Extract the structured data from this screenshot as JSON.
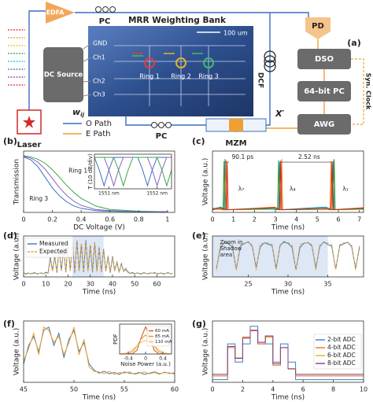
{
  "diagram": {
    "panel_label": "(a)",
    "edfa": "EDFA",
    "pc_top": "PC",
    "chip_title": "MRR Weighting Bank",
    "scale_bar": "100 um",
    "pads": [
      "GND",
      "Ch1",
      "Ch2",
      "Ch3"
    ],
    "dc_source": "DC Source",
    "weight": "w",
    "weight_sub": "ij",
    "rings": [
      "Ring 1",
      "Ring 2",
      "Ring 3"
    ],
    "dcf": "DCF",
    "pd": "PD",
    "dso": "DSO",
    "computer": "64-bit PC",
    "clock": "Syn. Clock",
    "awg": "AWG",
    "mzm": "MZM",
    "x_prime": "X′",
    "pc_bottom": "PC",
    "laser": "Laser",
    "legend": [
      "O Path",
      "E Path"
    ]
  },
  "chart_data": [
    {
      "type": "line",
      "panel_label": "(b)",
      "xlabel": "DC Voltage (V)",
      "ylabel": "Transmission",
      "xlim": [
        0,
        1.05
      ],
      "xticks": [
        0,
        0.2,
        0.4,
        0.6,
        0.8,
        1
      ],
      "ylim": [
        0,
        1.05
      ],
      "x": [
        0,
        0.05,
        0.1,
        0.15,
        0.2,
        0.25,
        0.3,
        0.35,
        0.4,
        0.5,
        0.6,
        0.8,
        1
      ],
      "series": [
        {
          "color": "#3aa64a",
          "values": [
            0.97,
            0.95,
            0.91,
            0.84,
            0.73,
            0.6,
            0.46,
            0.34,
            0.24,
            0.11,
            0.05,
            0.02,
            0.01
          ]
        },
        {
          "color": "#8a5fc0",
          "values": [
            0.96,
            0.93,
            0.86,
            0.74,
            0.58,
            0.42,
            0.29,
            0.19,
            0.12,
            0.05,
            0.03,
            0.01,
            0.01
          ]
        },
        {
          "color": "#3a6fc0",
          "values": [
            0.95,
            0.9,
            0.78,
            0.6,
            0.42,
            0.28,
            0.18,
            0.11,
            0.07,
            0.03,
            0.02,
            0.01,
            0.01
          ]
        }
      ],
      "annotations": [
        "Ring 1",
        "Ring 3"
      ],
      "inset": {
        "type": "line",
        "ylabel": "T (10 dB/div)",
        "xlim": [
          1550.7,
          1552.3
        ],
        "xticks": [
          {
            "value": 1551,
            "label": "1551 nm"
          },
          {
            "value": 1552,
            "label": "1552 nm"
          }
        ],
        "ylim": [
          0,
          1.1
        ],
        "x": [
          1550.7,
          1550.8,
          1550.9,
          1551.0,
          1551.1,
          1551.2,
          1551.3,
          1551.4,
          1551.5,
          1551.6,
          1551.7,
          1551.8,
          1551.9,
          1552.0,
          1552.1,
          1552.2,
          1552.3
        ],
        "series": [
          {
            "color": "#3a6fc0",
            "values": [
              1,
              0.6,
              0.1,
              0.6,
              1,
              1,
              1,
              1,
              1,
              1,
              0.6,
              0.1,
              0.6,
              1,
              1,
              1,
              1
            ]
          },
          {
            "color": "#8a5fc0",
            "values": [
              1,
              1,
              1,
              0.6,
              0.1,
              0.6,
              1,
              1,
              1,
              1,
              1,
              1,
              0.6,
              0.1,
              0.6,
              1,
              1
            ]
          },
          {
            "color": "#3aa64a",
            "values": [
              1,
              1,
              1,
              1,
              1,
              0.6,
              0.1,
              0.6,
              1,
              1,
              1,
              1,
              1,
              1,
              0.6,
              0.1,
              0.6
            ]
          }
        ]
      }
    },
    {
      "type": "line",
      "panel_label": "(c)",
      "xlabel": "Time (ns)",
      "ylabel": "Voltage (a.u.)",
      "xlim": [
        0,
        7.2
      ],
      "xticks": [
        0,
        1,
        2,
        3,
        4,
        5,
        6,
        7
      ],
      "ylim": [
        0,
        1.15
      ],
      "series": [
        {
          "color": "#1f77b4",
          "x": [
            0,
            0.4,
            0.55,
            0.6,
            0.65,
            2.9,
            3.15,
            3.2,
            3.25,
            5.4,
            5.7,
            5.75,
            5.8,
            7.2
          ],
          "values": [
            0.06,
            0.1,
            0.05,
            1.0,
            0.05,
            0.08,
            0.05,
            0.95,
            0.05,
            0.1,
            0.05,
            0.97,
            0.05,
            0.07
          ]
        },
        {
          "color": "#ff7f0e",
          "x": [
            0,
            0.45,
            0.6,
            0.65,
            0.7,
            2.95,
            3.25,
            3.3,
            3.35,
            5.35,
            5.6,
            5.65,
            5.7,
            7.2
          ],
          "values": [
            0.08,
            0.05,
            0.05,
            0.98,
            0.05,
            0.1,
            0.05,
            1.0,
            0.05,
            0.07,
            0.05,
            0.96,
            0.05,
            0.09
          ]
        },
        {
          "color": "#2ca02c",
          "x": [
            0,
            0.35,
            0.5,
            0.55,
            0.6,
            2.85,
            3.1,
            3.15,
            3.2,
            5.45,
            5.75,
            5.8,
            5.85,
            7.2
          ],
          "values": [
            0.07,
            0.09,
            0.05,
            0.96,
            0.05,
            0.06,
            0.05,
            0.98,
            0.05,
            0.08,
            0.05,
            1.0,
            0.05,
            0.06
          ]
        },
        {
          "color": "#d62728",
          "x": [
            0,
            0.5,
            0.65,
            0.7,
            0.75,
            3.0,
            3.2,
            3.25,
            3.3,
            5.5,
            5.65,
            5.7,
            5.75,
            7.2
          ],
          "values": [
            0.05,
            0.08,
            0.05,
            0.94,
            0.05,
            0.09,
            0.05,
            0.97,
            0.05,
            0.06,
            0.05,
            0.95,
            0.05,
            0.08
          ]
        }
      ],
      "annotations": [
        "90.1 ps",
        "2.52 ns",
        "λ₇",
        "λ₄",
        "λ₁"
      ]
    },
    {
      "type": "line",
      "panel_label": "(d)",
      "xlabel": "Time (ns)",
      "ylabel": "Voltage (a.u.)",
      "xlim": [
        0,
        68
      ],
      "xticks": [
        0,
        10,
        20,
        30,
        40,
        50,
        60
      ],
      "ylim": [
        0,
        1.15
      ],
      "highlight_x": [
        22,
        36
      ],
      "legend": "upper left",
      "x": [
        0,
        1,
        2,
        3,
        4,
        5,
        6,
        7,
        8,
        9,
        10,
        11,
        12,
        13,
        14,
        15,
        16,
        17,
        18,
        19,
        20,
        21,
        22,
        23,
        24,
        25,
        26,
        27,
        28,
        29,
        30,
        31,
        32,
        33,
        34,
        35,
        36,
        37,
        38,
        39,
        40,
        41,
        42,
        43,
        44,
        45,
        46,
        47,
        48,
        49,
        50,
        51,
        52,
        53,
        54,
        55,
        56,
        57,
        58,
        59,
        60,
        61,
        62,
        63,
        64,
        65,
        66,
        67
      ],
      "series": [
        {
          "name": "Measured",
          "color": "#3a78b8",
          "values": [
            0.12,
            0.08,
            0.11,
            0.09,
            0.1,
            0.12,
            0.08,
            0.1,
            0.11,
            0.09,
            0.13,
            0.1,
            0.55,
            0.18,
            0.58,
            0.12,
            0.8,
            0.17,
            0.82,
            0.13,
            0.93,
            0.18,
            0.97,
            0.12,
            1.02,
            0.17,
            0.92,
            0.14,
            1.03,
            0.18,
            0.88,
            0.13,
            0.97,
            0.17,
            0.82,
            0.14,
            0.78,
            0.16,
            0.57,
            0.12,
            0.58,
            0.17,
            0.42,
            0.13,
            0.37,
            0.16,
            0.22,
            0.13,
            0.1,
            0.12,
            0.09,
            0.11,
            0.1,
            0.08,
            0.12,
            0.1,
            0.09,
            0.11,
            0.1,
            0.12,
            0.09,
            0.1,
            0.11,
            0.08,
            0.1,
            0.12,
            0.09,
            0.1
          ]
        },
        {
          "name": "Expected",
          "color": "#f0a030",
          "linestyle": "dashed",
          "values": [
            0.1,
            0.1,
            0.1,
            0.1,
            0.1,
            0.1,
            0.1,
            0.1,
            0.1,
            0.1,
            0.1,
            0.1,
            0.5,
            0.15,
            0.6,
            0.15,
            0.75,
            0.15,
            0.85,
            0.15,
            0.9,
            0.15,
            0.95,
            0.15,
            1.0,
            0.15,
            0.95,
            0.15,
            1.0,
            0.15,
            0.9,
            0.15,
            0.95,
            0.15,
            0.85,
            0.15,
            0.75,
            0.15,
            0.6,
            0.15,
            0.55,
            0.15,
            0.45,
            0.15,
            0.35,
            0.15,
            0.25,
            0.15,
            0.1,
            0.1,
            0.1,
            0.1,
            0.1,
            0.1,
            0.1,
            0.1,
            0.1,
            0.1,
            0.1,
            0.1,
            0.1,
            0.1,
            0.1,
            0.1,
            0.1,
            0.1,
            0.1,
            0.1
          ]
        }
      ]
    },
    {
      "type": "line",
      "panel_label": "(e)",
      "xlabel": "Time (ns)",
      "ylabel": "Voltage (a.u.)",
      "xlim": [
        20.5,
        39.5
      ],
      "xticks": [
        25,
        30,
        35
      ],
      "ylim": [
        0,
        1.2
      ],
      "highlight_x": [
        20.5,
        35
      ],
      "x": [
        21,
        21.5,
        22,
        22.5,
        23,
        23.5,
        24,
        24.5,
        25,
        25.5,
        26,
        26.5,
        27,
        27.5,
        28,
        28.5,
        29,
        29.5,
        30,
        30.5,
        31,
        31.5,
        32,
        32.5,
        33,
        33.5,
        34,
        34.5,
        35,
        35.5,
        36,
        36.5,
        37,
        37.5,
        38,
        38.5,
        39
      ],
      "series": [
        {
          "color": "#3a78b8",
          "values": [
            0.25,
            0.85,
            1.02,
            0.97,
            0.88,
            0.22,
            0.9,
            0.98,
            1.03,
            0.9,
            0.27,
            0.88,
            1.0,
            0.96,
            0.92,
            0.24,
            0.92,
            1.04,
            0.98,
            0.87,
            0.21,
            0.86,
            0.99,
            1.01,
            0.91,
            0.26,
            0.89,
            1.03,
            0.95,
            0.9,
            0.23,
            0.91,
            0.97,
            1.02,
            0.89,
            0.25,
            0.88
          ]
        },
        {
          "color": "#f0a030",
          "linestyle": "dashed",
          "values": [
            0.2,
            0.95,
            1,
            1,
            0.95,
            0.2,
            0.95,
            1,
            1,
            0.95,
            0.2,
            0.95,
            1,
            1,
            0.95,
            0.2,
            0.95,
            1,
            1,
            0.95,
            0.2,
            0.95,
            1,
            1,
            0.95,
            0.2,
            0.95,
            1,
            1,
            0.95,
            0.2,
            0.95,
            1,
            1,
            0.95,
            0.2,
            0.95
          ]
        }
      ],
      "annotations": [
        [
          "Zoom in",
          "Shadow",
          "area"
        ]
      ]
    },
    {
      "type": "line",
      "panel_label": "(f)",
      "xlabel": "Time (ns)",
      "ylabel": "Voltage (a.u.)",
      "xlim": [
        45,
        60
      ],
      "xticks": [
        45,
        50,
        55,
        60
      ],
      "ylim": [
        0,
        1
      ],
      "x": [
        45,
        45.5,
        46,
        46.5,
        47,
        47.5,
        48,
        48.5,
        49,
        49.5,
        50,
        50.5,
        51,
        51.5,
        52,
        52.5,
        53,
        53.5,
        54,
        54.5,
        55,
        55.5,
        56,
        56.5,
        57,
        57.5,
        58,
        58.5,
        59,
        59.5,
        60
      ],
      "series": [
        {
          "color": "#3a78b8",
          "values": [
            0.3,
            0.6,
            0.75,
            0.5,
            0.85,
            0.9,
            0.6,
            0.8,
            0.4,
            0.7,
            0.85,
            0.5,
            0.65,
            0.3,
            0.2,
            0.15,
            0.18,
            0.14,
            0.16,
            0.13,
            0.17,
            0.15,
            0.14,
            0.16,
            0.13,
            0.15,
            0.17,
            0.14,
            0.16,
            0.15,
            0.14
          ]
        },
        {
          "color": "#f0a030",
          "values": [
            0.35,
            0.55,
            0.8,
            0.45,
            0.9,
            0.85,
            0.65,
            0.75,
            0.45,
            0.65,
            0.9,
            0.45,
            0.7,
            0.25,
            0.18,
            0.17,
            0.14,
            0.18,
            0.13,
            0.16,
            0.15,
            0.17,
            0.13,
            0.15,
            0.17,
            0.14,
            0.16,
            0.13,
            0.17,
            0.14,
            0.16
          ]
        }
      ],
      "inset": {
        "type": "line",
        "xlabel": "Noise Power (a.u.)",
        "ylabel": "PDF",
        "xlim": [
          -0.6,
          0.6
        ],
        "xticks": [
          -0.4,
          0,
          0.4
        ],
        "ylim": [
          0,
          1.1
        ],
        "legend": "upper right",
        "x": [
          -0.6,
          -0.5,
          -0.4,
          -0.3,
          -0.2,
          -0.1,
          0,
          0.1,
          0.2,
          0.3,
          0.4,
          0.5,
          0.6
        ],
        "series": [
          {
            "name": "60 mA",
            "color": "#c75a12",
            "values": [
              0,
              0,
              0,
              0.01,
              0.14,
              0.61,
              1,
              0.61,
              0.14,
              0.01,
              0,
              0,
              0
            ]
          },
          {
            "name": "85 mA",
            "color": "#e8902a",
            "values": [
              0,
              0,
              0.02,
              0.09,
              0.29,
              0.56,
              0.7,
              0.56,
              0.29,
              0.09,
              0.02,
              0,
              0
            ]
          },
          {
            "name": "110 mA",
            "color": "#f5c16c",
            "values": [
              0.01,
              0.02,
              0.07,
              0.16,
              0.3,
              0.44,
              0.5,
              0.44,
              0.3,
              0.16,
              0.07,
              0.02,
              0.01
            ]
          }
        ]
      }
    },
    {
      "type": "line",
      "panel_label": "(g)",
      "xlabel": "Time (ns)",
      "ylabel": "Voltage (a.u.)",
      "xlim": [
        0,
        10
      ],
      "xticks": [
        0,
        2,
        4,
        6,
        8,
        10
      ],
      "ylim": [
        -0.05,
        1.1
      ],
      "step": true,
      "legend": "center right",
      "x": [
        0,
        0.5,
        1,
        1.5,
        2,
        2.5,
        3,
        3.5,
        4,
        4.5,
        5,
        5.5,
        6,
        6.5,
        7,
        7.5,
        8,
        8.5,
        9,
        9.5,
        10
      ],
      "series": [
        {
          "name": "2-bit ADC",
          "color": "#3f7fbf",
          "values": [
            0,
            0,
            0.67,
            0.33,
            0.67,
            1,
            0.67,
            0.67,
            0.33,
            0.67,
            0.33,
            0,
            0,
            0,
            0,
            0,
            0,
            0,
            0,
            0,
            0
          ]
        },
        {
          "name": "4-bit ADC",
          "color": "#e8741c",
          "values": [
            0.07,
            0.07,
            0.6,
            0.4,
            0.8,
            0.93,
            0.67,
            0.8,
            0.27,
            0.6,
            0.2,
            0.07,
            0.07,
            0.07,
            0.07,
            0.07,
            0.07,
            0.07,
            0.07,
            0.07,
            0.07
          ]
        },
        {
          "name": "6-bit ADC",
          "color": "#e6b422",
          "values": [
            0.1,
            0.1,
            0.62,
            0.41,
            0.78,
            0.92,
            0.7,
            0.81,
            0.3,
            0.6,
            0.21,
            0.1,
            0.1,
            0.1,
            0.1,
            0.1,
            0.1,
            0.1,
            0.1,
            0.1,
            0.1
          ]
        },
        {
          "name": "8-bit ADC",
          "color": "#7b3f9e",
          "values": [
            0.1,
            0.1,
            0.62,
            0.4,
            0.78,
            0.92,
            0.7,
            0.82,
            0.3,
            0.6,
            0.2,
            0.1,
            0.1,
            0.1,
            0.1,
            0.1,
            0.1,
            0.1,
            0.1,
            0.1,
            0.1
          ]
        }
      ]
    }
  ]
}
